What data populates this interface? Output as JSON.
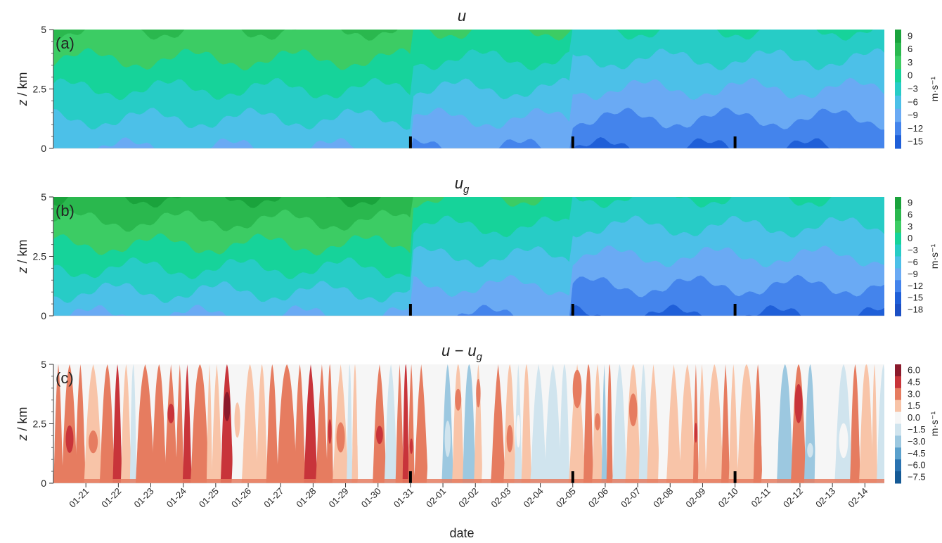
{
  "chart_data": [
    {
      "type": "heatmap",
      "panel": "(a)",
      "title": "u",
      "title_sub": "",
      "ylabel": "z / km",
      "ylim": [
        0,
        5
      ],
      "yticks": [
        "0",
        "2.5",
        "5"
      ],
      "colorbar_unit": "m·s⁻¹",
      "colorbar_levels": [
        "9",
        "6",
        "3",
        "0",
        "−3",
        "−6",
        "−9",
        "−12",
        "−15"
      ],
      "colorbar_colors": [
        "#1aa33c",
        "#2ab84e",
        "#3ccc64",
        "#16d39a",
        "#27ccc6",
        "#4cc0e8",
        "#6aaaf4",
        "#4484ec",
        "#1f5fd8"
      ],
      "x_start": "01-20",
      "x_end": "02-14",
      "markers": [
        "01-31",
        "02-05",
        "02-10"
      ],
      "regions": [
        {
          "from": "01-20",
          "to": "01-31",
          "top": 3,
          "bottom": 6,
          "level_top": "3",
          "level_bottom": "−6"
        },
        {
          "from": "01-31",
          "to": "02-05",
          "top": 3,
          "bottom": 6,
          "level_top": "0",
          "level_bottom": "−9"
        },
        {
          "from": "02-05",
          "to": "02-14",
          "top": 6,
          "bottom": 8,
          "level_top": "−3",
          "level_bottom": "−12"
        }
      ]
    },
    {
      "type": "heatmap",
      "panel": "(b)",
      "title": "u",
      "title_sub": "g",
      "ylabel": "z / km",
      "ylim": [
        0,
        5
      ],
      "yticks": [
        "0",
        "2.5",
        "5"
      ],
      "colorbar_unit": "m·s⁻¹",
      "colorbar_levels": [
        "9",
        "6",
        "3",
        "0",
        "−3",
        "−6",
        "−9",
        "−12",
        "−15",
        "−18"
      ],
      "colorbar_colors": [
        "#1aa33c",
        "#2ab84e",
        "#3ccc64",
        "#16d39a",
        "#27ccc6",
        "#4cc0e8",
        "#6aaaf4",
        "#4484ec",
        "#1f5fd8",
        "#1b4fc4"
      ],
      "x_start": "01-20",
      "x_end": "02-14",
      "markers": [
        "01-31",
        "02-05",
        "02-10"
      ],
      "regions": [
        {
          "from": "01-20",
          "to": "01-31",
          "top": 2,
          "bottom": 6,
          "level_top": "6",
          "level_bottom": "−6"
        },
        {
          "from": "01-31",
          "to": "02-05",
          "top": 3,
          "bottom": 6,
          "level_top": "0",
          "level_bottom": "−9"
        },
        {
          "from": "02-05",
          "to": "02-14",
          "top": 5,
          "bottom": 8,
          "level_top": "−3",
          "level_bottom": "−12"
        }
      ]
    },
    {
      "type": "heatmap",
      "panel": "(c)",
      "title": "u − u",
      "title_sub": "g",
      "ylabel": "z / km",
      "ylim": [
        0,
        5
      ],
      "yticks": [
        "0",
        "2.5",
        "5"
      ],
      "xlabel": "date",
      "xticks": [
        "01-21",
        "01-22",
        "01-23",
        "01-24",
        "01-25",
        "01-26",
        "01-27",
        "01-28",
        "01-29",
        "01-30",
        "01-31",
        "02-01",
        "02-02",
        "02-03",
        "02-04",
        "02-05",
        "02-06",
        "02-07",
        "02-08",
        "02-09",
        "02-10",
        "02-11",
        "02-12",
        "02-13",
        "02-14"
      ],
      "colorbar_unit": "m·s⁻¹",
      "colorbar_levels": [
        "6.0",
        "4.5",
        "3.0",
        "1.5",
        "0.0",
        "−1.5",
        "−3.0",
        "−4.5",
        "−6.0",
        "−7.5"
      ],
      "colorbar_colors": [
        "#8b1a2c",
        "#c8343a",
        "#e67c60",
        "#f8c4a8",
        "#f6f6f6",
        "#d0e4ee",
        "#9cc8e0",
        "#5aa0cc",
        "#2a72b0",
        "#155a96"
      ],
      "x_start": "01-20",
      "x_end": "02-14",
      "markers": [
        "01-31",
        "02-05",
        "02-10"
      ],
      "regions": [
        {
          "from": "01-20",
          "to": "01-31",
          "level": "1.5"
        },
        {
          "from": "01-31",
          "to": "02-05",
          "level": "0.0"
        },
        {
          "from": "02-05",
          "to": "02-14",
          "level": "0.0"
        }
      ]
    }
  ]
}
